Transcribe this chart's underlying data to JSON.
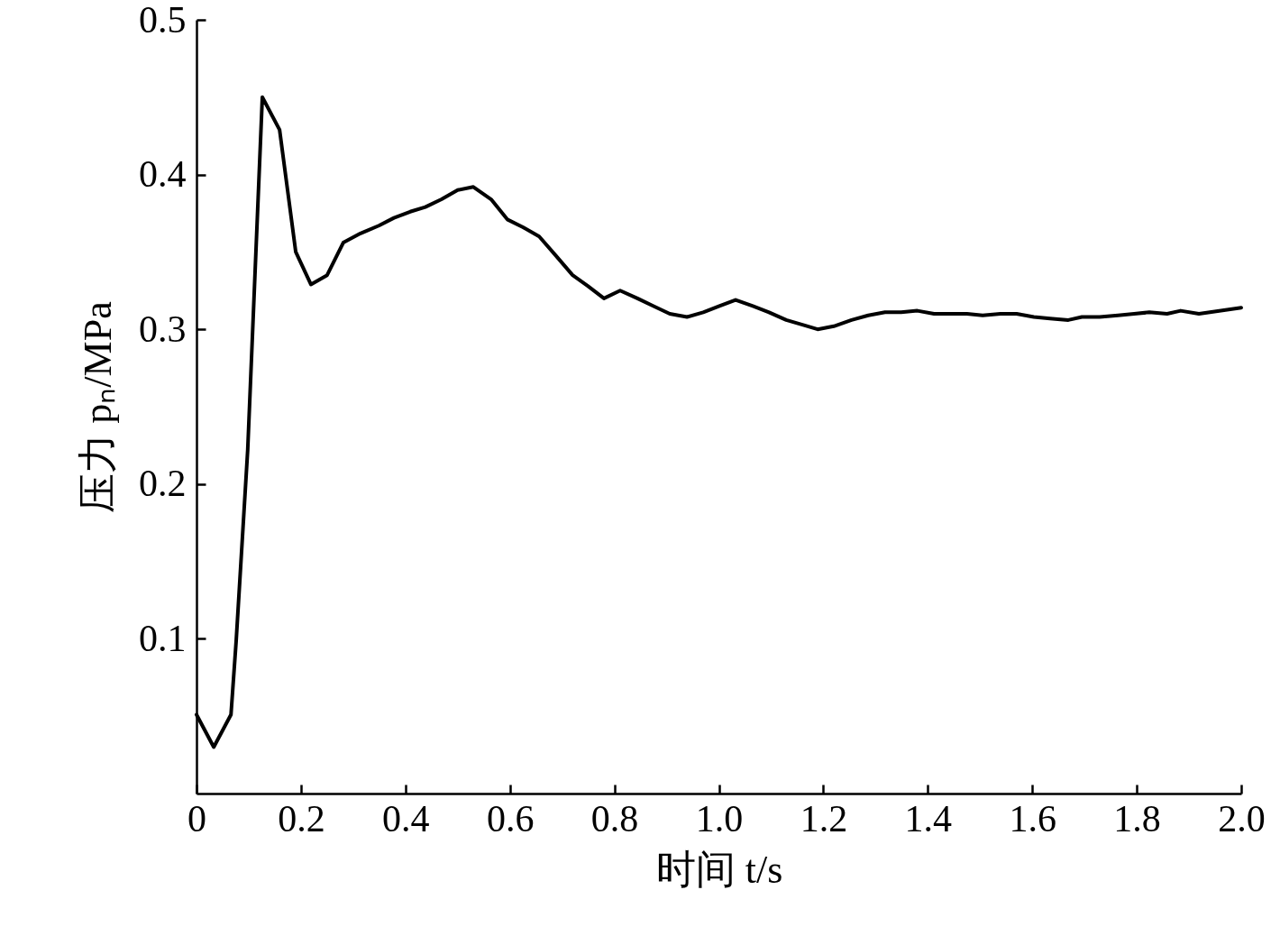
{
  "chart_data": {
    "type": "line",
    "xlabel": "时间 t/s",
    "ylabel": "压力 pₙ/MPa",
    "x": [
      0,
      0.033,
      0.066,
      0.076,
      0.098,
      0.126,
      0.159,
      0.19,
      0.219,
      0.25,
      0.281,
      0.314,
      0.349,
      0.378,
      0.409,
      0.438,
      0.469,
      0.5,
      0.53,
      0.564,
      0.595,
      0.625,
      0.656,
      0.687,
      0.72,
      0.749,
      0.78,
      0.811,
      0.844,
      0.875,
      0.906,
      0.939,
      0.97,
      1.001,
      1.032,
      1.065,
      1.096,
      1.129,
      1.16,
      1.189,
      1.22,
      1.254,
      1.286,
      1.318,
      1.349,
      1.38,
      1.412,
      1.475,
      1.505,
      1.539,
      1.57,
      1.603,
      1.634,
      1.669,
      1.695,
      1.729,
      1.764,
      1.795,
      1.824,
      1.858,
      1.884,
      1.919,
      2.0
    ],
    "series": [
      {
        "color": "#000000",
        "values": [
          0.051,
          0.03,
          0.051,
          0.099,
          0.222,
          0.45,
          0.429,
          0.35,
          0.329,
          0.335,
          0.356,
          0.362,
          0.367,
          0.372,
          0.376,
          0.379,
          0.384,
          0.39,
          0.392,
          0.384,
          0.371,
          0.366,
          0.36,
          0.348,
          0.335,
          0.328,
          0.32,
          0.325,
          0.32,
          0.315,
          0.31,
          0.308,
          0.311,
          0.315,
          0.319,
          0.315,
          0.311,
          0.306,
          0.303,
          0.3,
          0.302,
          0.306,
          0.309,
          0.311,
          0.311,
          0.312,
          0.31,
          0.31,
          0.309,
          0.31,
          0.31,
          0.308,
          0.307,
          0.306,
          0.308,
          0.308,
          0.309,
          0.31,
          0.311,
          0.31,
          0.312,
          0.31,
          0.314
        ]
      }
    ],
    "xlim": [
      0,
      2
    ],
    "xticks": [
      0,
      0.2,
      0.4,
      0.6,
      0.8,
      {
        "value": 1,
        "label": "1.0"
      },
      1.2,
      1.4,
      1.6,
      1.8,
      {
        "value": 2,
        "label": "2.0"
      }
    ],
    "ylim": [
      0,
      0.5
    ],
    "yticks": [
      0.1,
      0.2,
      0.3,
      0.4,
      0.5
    ],
    "grid": false,
    "marker": "none",
    "line_style": "solid"
  }
}
